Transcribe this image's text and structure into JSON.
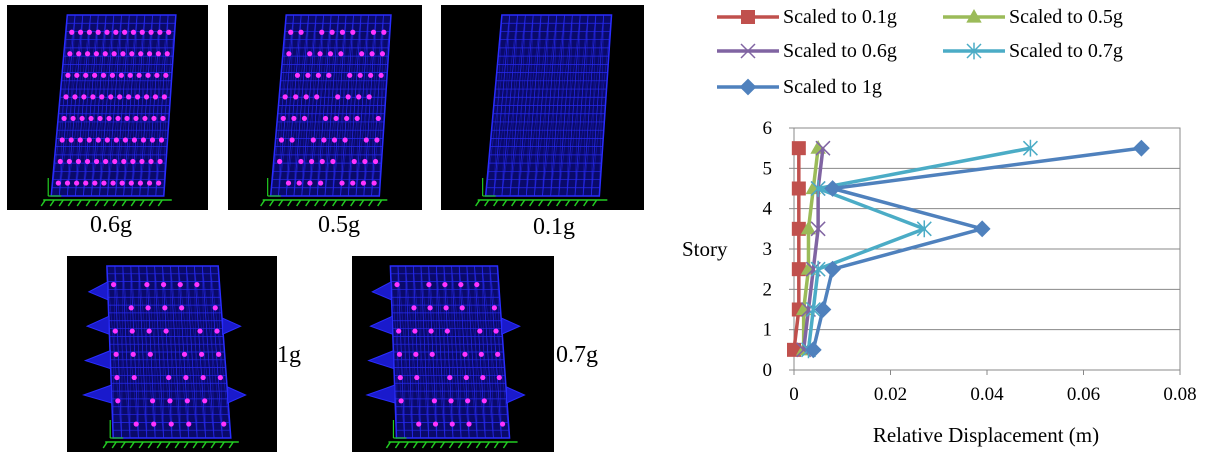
{
  "panels": [
    {
      "label": "0.6g",
      "tilt": "right",
      "bulges": false,
      "hinges": "dense"
    },
    {
      "label": "0.5g",
      "tilt": "right",
      "bulges": false,
      "hinges": "medium"
    },
    {
      "label": "0.1g",
      "tilt": "right",
      "bulges": false,
      "hinges": "none"
    },
    {
      "label": "1g",
      "tilt": "left",
      "bulges": true,
      "hinges": "sparse"
    },
    {
      "label": "0.7g",
      "tilt": "left",
      "bulges": true,
      "hinges": "sparse"
    }
  ],
  "colors": {
    "panel_background": "#000000",
    "mesh": "#2a2dff",
    "plastic_hinge": "#ff33ff",
    "support": "#22cc22"
  },
  "chart_data": {
    "type": "line",
    "orientation": "x-horizontal-y-story",
    "xlabel": "Relative Displacement (m)",
    "ylabel": "Story",
    "xlim": [
      0,
      0.08
    ],
    "ylim": [
      0,
      6
    ],
    "xticks": [
      "0",
      "0.02",
      "0.04",
      "0.06",
      "0.08"
    ],
    "yticks": [
      "0",
      "1",
      "2",
      "3",
      "4",
      "5",
      "6"
    ],
    "grid": "horizontal",
    "legend_position": "top",
    "series": [
      {
        "name": "Scaled to 0.1g",
        "color": "#c0504d",
        "marker": "square",
        "points": [
          [
            0,
            0.5
          ],
          [
            0.001,
            1.5
          ],
          [
            0.001,
            2.5
          ],
          [
            0.001,
            3.5
          ],
          [
            0.001,
            4.5
          ],
          [
            0.001,
            5.5
          ]
        ]
      },
      {
        "name": "Scaled to 0.5g",
        "color": "#9bbb59",
        "marker": "triangle",
        "points": [
          [
            0.002,
            0.5
          ],
          [
            0.002,
            1.5
          ],
          [
            0.003,
            2.5
          ],
          [
            0.003,
            3.5
          ],
          [
            0.004,
            4.5
          ],
          [
            0.005,
            5.5
          ]
        ]
      },
      {
        "name": "Scaled to 0.6g",
        "color": "#8064a2",
        "marker": "x",
        "points": [
          [
            0.002,
            0.5
          ],
          [
            0.003,
            1.5
          ],
          [
            0.004,
            2.5
          ],
          [
            0.005,
            3.5
          ],
          [
            0.005,
            4.5
          ],
          [
            0.006,
            5.5
          ]
        ]
      },
      {
        "name": "Scaled to 0.7g",
        "color": "#4bacc6",
        "marker": "star",
        "points": [
          [
            0.003,
            0.5
          ],
          [
            0.004,
            1.5
          ],
          [
            0.005,
            2.5
          ],
          [
            0.027,
            3.5
          ],
          [
            0.005,
            4.5
          ],
          [
            0.049,
            5.5
          ]
        ]
      },
      {
        "name": "Scaled to 1g",
        "color": "#4f81bd",
        "marker": "diamond",
        "points": [
          [
            0.004,
            0.5
          ],
          [
            0.006,
            1.5
          ],
          [
            0.008,
            2.5
          ],
          [
            0.039,
            3.5
          ],
          [
            0.008,
            4.5
          ],
          [
            0.072,
            5.5
          ]
        ]
      }
    ]
  }
}
